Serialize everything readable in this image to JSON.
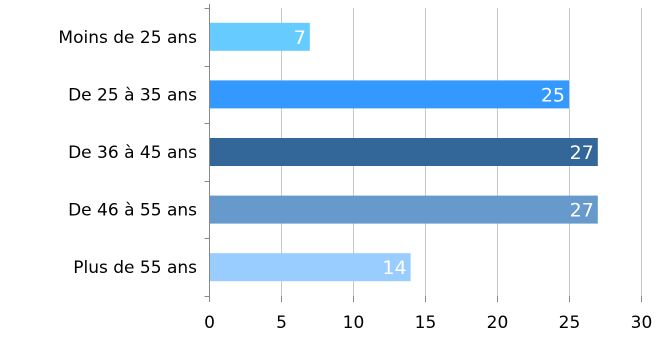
{
  "chart_data": {
    "type": "bar",
    "orientation": "horizontal",
    "categories": [
      "Moins de 25 ans",
      "De 25 à 35 ans",
      "De 36 à 45 ans",
      "De 46 à 55 ans",
      "Plus de 55 ans"
    ],
    "values": [
      7,
      25,
      27,
      27,
      14
    ],
    "bar_colors": [
      "#66CCFF",
      "#3399FF",
      "#336699",
      "#6699CC",
      "#99CCFF"
    ],
    "xlim": [
      0,
      30
    ],
    "x_ticks": [
      0,
      5,
      10,
      15,
      20,
      25,
      30
    ],
    "title": "",
    "xlabel": "",
    "ylabel": "",
    "grid": "vertical",
    "legend": "none",
    "data_labels": "inside-end"
  }
}
